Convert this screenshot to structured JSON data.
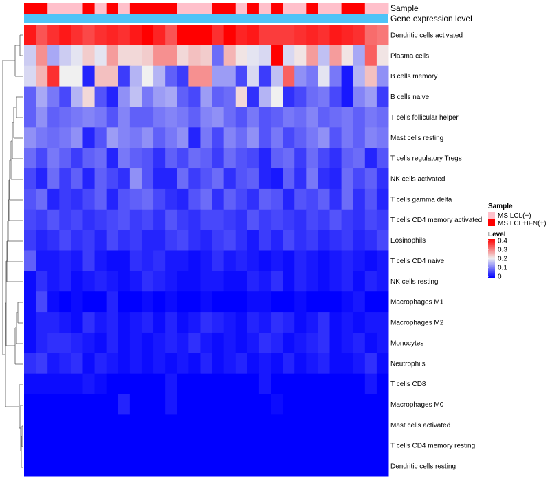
{
  "chart_data": {
    "type": "heatmap",
    "annotation_tracks": [
      "Sample",
      "Gene expression level"
    ],
    "sample_groups": [
      2,
      2,
      1,
      1,
      1,
      2,
      1,
      2,
      1,
      2,
      2,
      2,
      2,
      1,
      1,
      1,
      2,
      2,
      1,
      2,
      1,
      2,
      1,
      1,
      2,
      1,
      1,
      2,
      2,
      1,
      1
    ],
    "expression_track_color": "#4FC3F7",
    "rows": [
      "Dendritic cells activated",
      "Plasma cells",
      "B cells memory",
      "B cells naive",
      "T cells follicular helper",
      "Mast cells resting",
      "T cells regulatory  Tregs",
      "NK cells activated",
      "T cells gamma delta",
      "T cells CD4 memory activated",
      "Eosinophils",
      "T cells CD4 naive",
      "NK cells resting",
      "Macrophages M1",
      "Macrophages M2",
      "Monocytes",
      "Neutrophils",
      "T cells CD8",
      "Macrophages M0",
      "Mast cells activated",
      "T cells CD4 memory resting",
      "Dendritic cells resting"
    ],
    "values": [
      [
        0.38,
        0.33,
        0.36,
        0.38,
        0.36,
        0.34,
        0.36,
        0.37,
        0.36,
        0.38,
        0.4,
        0.37,
        0.33,
        0.4,
        0.4,
        0.4,
        0.36,
        0.4,
        0.37,
        0.38,
        0.35,
        0.35,
        0.35,
        0.36,
        0.37,
        0.36,
        0.38,
        0.37,
        0.36,
        0.31,
        0.3
      ],
      [
        0.17,
        0.28,
        0.14,
        0.17,
        0.19,
        0.23,
        0.19,
        0.27,
        0.22,
        0.22,
        0.23,
        0.28,
        0.28,
        0.22,
        0.24,
        0.23,
        0.09,
        0.25,
        0.21,
        0.19,
        0.18,
        0.4,
        0.18,
        0.21,
        0.27,
        0.16,
        0.27,
        0.21,
        0.14,
        0.32,
        0.21
      ],
      [
        0.18,
        0.25,
        0.36,
        0.2,
        0.2,
        0.03,
        0.24,
        0.24,
        0.05,
        0.15,
        0.2,
        0.15,
        0.08,
        0.05,
        0.28,
        0.28,
        0.13,
        0.13,
        0.06,
        0.18,
        0.05,
        0.16,
        0.32,
        0.12,
        0.1,
        0.19,
        0.1,
        0.02,
        0.15,
        0.24,
        0.12
      ],
      [
        0.08,
        0.14,
        0.1,
        0.06,
        0.15,
        0.22,
        0.07,
        0.03,
        0.12,
        0.16,
        0.1,
        0.13,
        0.14,
        0.08,
        0.06,
        0.13,
        0.08,
        0.09,
        0.22,
        0.04,
        0.15,
        0.2,
        0.04,
        0.06,
        0.09,
        0.1,
        0.06,
        0.02,
        0.11,
        0.13,
        0.05
      ],
      [
        0.08,
        0.12,
        0.08,
        0.09,
        0.1,
        0.11,
        0.1,
        0.07,
        0.11,
        0.08,
        0.08,
        0.1,
        0.11,
        0.1,
        0.08,
        0.11,
        0.12,
        0.09,
        0.07,
        0.1,
        0.07,
        0.08,
        0.1,
        0.09,
        0.11,
        0.08,
        0.09,
        0.1,
        0.08,
        0.1,
        0.09
      ],
      [
        0.12,
        0.1,
        0.09,
        0.1,
        0.12,
        0.03,
        0.07,
        0.13,
        0.11,
        0.1,
        0.12,
        0.08,
        0.1,
        0.12,
        0.03,
        0.1,
        0.06,
        0.11,
        0.09,
        0.12,
        0.07,
        0.1,
        0.06,
        0.08,
        0.1,
        0.12,
        0.07,
        0.1,
        0.08,
        0.11,
        0.1
      ],
      [
        0.09,
        0.06,
        0.1,
        0.08,
        0.05,
        0.08,
        0.09,
        0.03,
        0.1,
        0.08,
        0.07,
        0.04,
        0.08,
        0.06,
        0.09,
        0.08,
        0.05,
        0.09,
        0.07,
        0.06,
        0.03,
        0.08,
        0.09,
        0.05,
        0.09,
        0.06,
        0.04,
        0.08,
        0.09,
        0.03,
        0.07
      ],
      [
        0.06,
        0.03,
        0.09,
        0.05,
        0.08,
        0.03,
        0.08,
        0.06,
        0.04,
        0.12,
        0.07,
        0.03,
        0.03,
        0.09,
        0.05,
        0.07,
        0.09,
        0.04,
        0.07,
        0.08,
        0.03,
        0.02,
        0.08,
        0.04,
        0.1,
        0.04,
        0.03,
        0.09,
        0.06,
        0.08,
        0.04
      ],
      [
        0.07,
        0.09,
        0.03,
        0.05,
        0.04,
        0.06,
        0.08,
        0.03,
        0.07,
        0.08,
        0.09,
        0.06,
        0.04,
        0.03,
        0.07,
        0.09,
        0.04,
        0.08,
        0.06,
        0.04,
        0.08,
        0.07,
        0.03,
        0.07,
        0.06,
        0.08,
        0.04,
        0.09,
        0.04,
        0.07,
        0.03
      ],
      [
        0.06,
        0.05,
        0.07,
        0.05,
        0.06,
        0.04,
        0.05,
        0.06,
        0.07,
        0.05,
        0.06,
        0.04,
        0.07,
        0.05,
        0.04,
        0.06,
        0.06,
        0.05,
        0.04,
        0.07,
        0.05,
        0.06,
        0.05,
        0.04,
        0.06,
        0.05,
        0.07,
        0.05,
        0.04,
        0.06,
        0.05
      ],
      [
        0.05,
        0.03,
        0.04,
        0.06,
        0.04,
        0.05,
        0.03,
        0.06,
        0.04,
        0.05,
        0.03,
        0.03,
        0.05,
        0.06,
        0.04,
        0.03,
        0.05,
        0.06,
        0.04,
        0.02,
        0.05,
        0.03,
        0.06,
        0.04,
        0.05,
        0.03,
        0.04,
        0.05,
        0.03,
        0.04,
        0.06
      ],
      [
        0.08,
        0.02,
        0.02,
        0.03,
        0.02,
        0.05,
        0.02,
        0.01,
        0.01,
        0.04,
        0.03,
        0.04,
        0.02,
        0.02,
        0.01,
        0.02,
        0.04,
        0.02,
        0.03,
        0.02,
        0.01,
        0.02,
        0.01,
        0.03,
        0.02,
        0.01,
        0.02,
        0.03,
        0.02,
        0.01,
        0.02
      ],
      [
        0.01,
        0.04,
        0.02,
        0.03,
        0.01,
        0.02,
        0.03,
        0.02,
        0.01,
        0.02,
        0.04,
        0.03,
        0.02,
        0.01,
        0.01,
        0.02,
        0.02,
        0.01,
        0.01,
        0.03,
        0.02,
        0.04,
        0.01,
        0.03,
        0.02,
        0.01,
        0.02,
        0.03,
        0.01,
        0.03,
        0.02
      ],
      [
        0.01,
        0.06,
        0.01,
        0.0,
        0.01,
        0.0,
        0.0,
        0.03,
        0.0,
        0.0,
        0.01,
        0.0,
        0.01,
        0.0,
        0.0,
        0.01,
        0.0,
        0.0,
        0.0,
        0.01,
        0.01,
        0.0,
        0.0,
        0.01,
        0.0,
        0.0,
        0.0,
        0.01,
        0.02,
        0.0,
        0.0
      ],
      [
        0.01,
        0.03,
        0.03,
        0.02,
        0.01,
        0.04,
        0.02,
        0.03,
        0.01,
        0.02,
        0.03,
        0.01,
        0.03,
        0.01,
        0.02,
        0.04,
        0.03,
        0.02,
        0.01,
        0.03,
        0.02,
        0.04,
        0.03,
        0.01,
        0.02,
        0.04,
        0.01,
        0.02,
        0.01,
        0.02,
        0.02
      ],
      [
        0.01,
        0.03,
        0.04,
        0.04,
        0.03,
        0.02,
        0.01,
        0.03,
        0.01,
        0.02,
        0.01,
        0.02,
        0.03,
        0.02,
        0.04,
        0.02,
        0.01,
        0.02,
        0.01,
        0.02,
        0.04,
        0.03,
        0.01,
        0.02,
        0.03,
        0.04,
        0.01,
        0.02,
        0.03,
        0.01,
        0.02
      ],
      [
        0.04,
        0.05,
        0.02,
        0.03,
        0.04,
        0.01,
        0.03,
        0.02,
        0.01,
        0.02,
        0.01,
        0.02,
        0.01,
        0.02,
        0.01,
        0.03,
        0.01,
        0.02,
        0.03,
        0.01,
        0.02,
        0.01,
        0.03,
        0.01,
        0.02,
        0.03,
        0.01,
        0.01,
        0.02,
        0.04,
        0.01
      ],
      [
        0.01,
        0.01,
        0.01,
        0.01,
        0.01,
        0.02,
        0.01,
        0.0,
        0.0,
        0.0,
        0.0,
        0.0,
        0.02,
        0.0,
        0.0,
        0.0,
        0.0,
        0.0,
        0.0,
        0.0,
        0.02,
        0.0,
        0.0,
        0.0,
        0.0,
        0.0,
        0.0,
        0.0,
        0.0,
        0.02,
        0.0
      ],
      [
        0.0,
        0.0,
        0.0,
        0.0,
        0.0,
        0.0,
        0.0,
        0.0,
        0.03,
        0.0,
        0.0,
        0.0,
        0.02,
        0.0,
        0.0,
        0.0,
        0.0,
        0.0,
        0.0,
        0.0,
        0.0,
        0.01,
        0.0,
        0.0,
        0.0,
        0.0,
        0.0,
        0.0,
        0.0,
        0.0,
        0.0
      ],
      [
        0,
        0,
        0,
        0,
        0,
        0,
        0,
        0,
        0,
        0,
        0,
        0,
        0,
        0,
        0,
        0,
        0,
        0,
        0,
        0,
        0,
        0,
        0,
        0,
        0,
        0,
        0,
        0,
        0,
        0,
        0
      ],
      [
        0,
        0,
        0,
        0,
        0,
        0,
        0,
        0,
        0,
        0,
        0,
        0,
        0,
        0,
        0,
        0,
        0,
        0,
        0,
        0,
        0,
        0,
        0,
        0,
        0,
        0,
        0,
        0,
        0,
        0,
        0
      ],
      [
        0,
        0,
        0,
        0,
        0,
        0,
        0,
        0,
        0,
        0,
        0,
        0,
        0,
        0,
        0,
        0,
        0,
        0,
        0,
        0,
        0,
        0,
        0,
        0,
        0,
        0,
        0,
        0,
        0,
        0,
        0
      ]
    ],
    "legend": {
      "sample_title": "Sample",
      "sample_entries": [
        {
          "label": "MS LCL(+)",
          "color": "#FFC0CB"
        },
        {
          "label": "MS LCL+IFN(+)",
          "color": "#FF0000"
        }
      ],
      "level_title": "Level",
      "level_ticks": [
        "0.4",
        "0.3",
        "0.2",
        "0.1",
        "0"
      ],
      "level_tick_values": [
        0.4,
        0.3,
        0.2,
        0.1,
        0
      ],
      "color_scale": {
        "low": "#0000FF",
        "mid": "#F0F0F0",
        "high": "#FF0000",
        "min": 0,
        "max": 0.4,
        "midpoint": 0.2
      }
    }
  }
}
